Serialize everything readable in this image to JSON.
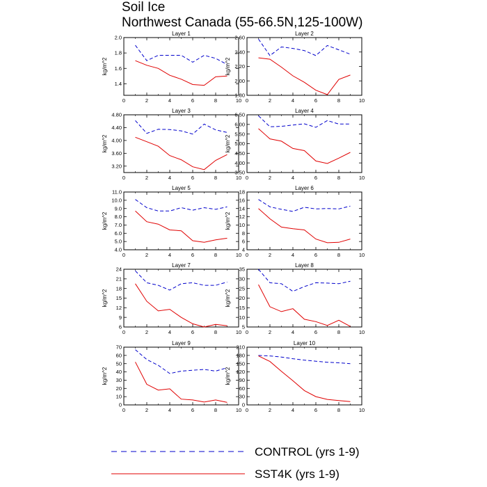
{
  "title": {
    "line1": "Soil Ice",
    "line2": "Northwest Canada (55-66.5N,125-100W)"
  },
  "legend": [
    {
      "label": "CONTROL (yrs 1-9)",
      "color": "#0000cc",
      "dash": "dashed"
    },
    {
      "label": "SST4K (yrs 1-9)",
      "color": "#e00000",
      "dash": "solid"
    }
  ],
  "chart_data": [
    {
      "type": "line",
      "title": "Layer 1",
      "ylabel": "kg/m^2",
      "xlim": [
        0,
        10
      ],
      "ylim": [
        1.25,
        2.0
      ],
      "yticks": [
        1.4,
        1.6,
        1.8,
        2.0
      ],
      "ytick_labels": [
        "1.4",
        "1.6",
        "1.8",
        "2.0"
      ],
      "x": [
        1,
        2,
        3,
        4,
        5,
        6,
        7,
        8,
        9
      ],
      "series": [
        {
          "name": "CONTROL (yrs 1-9)",
          "values": [
            1.9,
            1.7,
            1.77,
            1.77,
            1.77,
            1.68,
            1.77,
            1.73,
            1.65
          ]
        },
        {
          "name": "SST4K (yrs 1-9)",
          "values": [
            1.7,
            1.64,
            1.6,
            1.51,
            1.46,
            1.39,
            1.38,
            1.49,
            1.5
          ]
        }
      ]
    },
    {
      "type": "line",
      "title": "Layer 2",
      "ylabel": "kg/m^2",
      "xlim": [
        0,
        10
      ],
      "ylim": [
        1.8,
        2.6
      ],
      "yticks": [
        1.8,
        2.0,
        2.2,
        2.4,
        2.6
      ],
      "ytick_labels": [
        "1.80",
        "2.00",
        "2.20",
        "2.40",
        "2.60"
      ],
      "x": [
        1,
        2,
        3,
        4,
        5,
        6,
        7,
        8,
        9
      ],
      "series": [
        {
          "name": "CONTROL (yrs 1-9)",
          "values": [
            2.58,
            2.35,
            2.47,
            2.45,
            2.42,
            2.35,
            2.49,
            2.43,
            2.37
          ]
        },
        {
          "name": "SST4K (yrs 1-9)",
          "values": [
            2.32,
            2.3,
            2.19,
            2.07,
            1.98,
            1.87,
            1.81,
            2.02,
            2.08
          ]
        }
      ]
    },
    {
      "type": "line",
      "title": "Layer 3",
      "ylabel": "kg/m^2",
      "xlim": [
        0,
        10
      ],
      "ylim": [
        3.0,
        4.8
      ],
      "yticks": [
        3.2,
        3.6,
        4.0,
        4.4,
        4.8
      ],
      "ytick_labels": [
        "3.20",
        "3.60",
        "4.00",
        "4.40",
        "4.80"
      ],
      "x": [
        1,
        2,
        3,
        4,
        5,
        6,
        7,
        8,
        9
      ],
      "series": [
        {
          "name": "CONTROL (yrs 1-9)",
          "values": [
            4.62,
            4.22,
            4.35,
            4.34,
            4.3,
            4.2,
            4.51,
            4.33,
            4.25
          ]
        },
        {
          "name": "SST4K (yrs 1-9)",
          "values": [
            4.1,
            3.96,
            3.82,
            3.53,
            3.4,
            3.18,
            3.09,
            3.38,
            3.56
          ]
        }
      ]
    },
    {
      "type": "line",
      "title": "Layer 4",
      "ylabel": "kg/m^2",
      "xlim": [
        0,
        10
      ],
      "ylim": [
        3.5,
        6.5
      ],
      "yticks": [
        3.5,
        4.0,
        4.5,
        5.0,
        5.5,
        6.0,
        6.5
      ],
      "ytick_labels": [
        "3.50",
        "4.00",
        "4.50",
        "5.00",
        "5.50",
        "6.00",
        "6.50"
      ],
      "x": [
        1,
        2,
        3,
        4,
        5,
        6,
        7,
        8,
        9
      ],
      "series": [
        {
          "name": "CONTROL (yrs 1-9)",
          "values": [
            6.45,
            5.88,
            5.9,
            5.97,
            6.03,
            5.85,
            6.2,
            6.02,
            6.02
          ]
        },
        {
          "name": "SST4K (yrs 1-9)",
          "values": [
            5.78,
            5.25,
            5.13,
            4.75,
            4.64,
            4.1,
            3.97,
            4.25,
            4.55
          ]
        }
      ]
    },
    {
      "type": "line",
      "title": "Layer 5",
      "ylabel": "kg/m^2",
      "xlim": [
        0,
        10
      ],
      "ylim": [
        4.0,
        11.0
      ],
      "yticks": [
        4,
        5,
        6,
        7,
        8,
        9,
        10,
        11
      ],
      "ytick_labels": [
        "4.0",
        "5.0",
        "6.0",
        "7.0",
        "8.0",
        "9.0",
        "10.0",
        "11.0"
      ],
      "x": [
        1,
        2,
        3,
        4,
        5,
        6,
        7,
        8,
        9
      ],
      "series": [
        {
          "name": "CONTROL (yrs 1-9)",
          "values": [
            10.1,
            9.1,
            8.7,
            8.7,
            9.1,
            8.8,
            9.1,
            8.9,
            9.2
          ]
        },
        {
          "name": "SST4K (yrs 1-9)",
          "values": [
            8.7,
            7.4,
            7.1,
            6.4,
            6.3,
            5.1,
            4.9,
            5.2,
            5.4
          ]
        }
      ]
    },
    {
      "type": "line",
      "title": "Layer 6",
      "ylabel": "kg/m^2",
      "xlim": [
        0,
        10
      ],
      "ylim": [
        4,
        18
      ],
      "yticks": [
        4,
        6,
        8,
        10,
        12,
        14,
        16,
        18
      ],
      "ytick_labels": [
        "4",
        "6",
        "8",
        "10",
        "12",
        "14",
        "16",
        "18"
      ],
      "x": [
        1,
        2,
        3,
        4,
        5,
        6,
        7,
        8,
        9
      ],
      "series": [
        {
          "name": "CONTROL (yrs 1-9)",
          "values": [
            16.2,
            14.4,
            13.8,
            13.3,
            14.3,
            13.9,
            14.0,
            13.9,
            14.6
          ]
        },
        {
          "name": "SST4K (yrs 1-9)",
          "values": [
            14.0,
            11.5,
            9.5,
            9.1,
            8.8,
            6.6,
            5.7,
            5.8,
            6.6
          ]
        }
      ]
    },
    {
      "type": "line",
      "title": "Layer 7",
      "ylabel": "kg/m^2",
      "xlim": [
        0,
        10
      ],
      "ylim": [
        6,
        24
      ],
      "yticks": [
        6,
        9,
        12,
        15,
        18,
        21,
        24
      ],
      "ytick_labels": [
        "6",
        "9",
        "12",
        "15",
        "18",
        "21",
        "24"
      ],
      "x": [
        1,
        2,
        3,
        4,
        5,
        6,
        7,
        8,
        9
      ],
      "series": [
        {
          "name": "CONTROL (yrs 1-9)",
          "values": [
            23.5,
            19.8,
            19.0,
            17.5,
            19.5,
            19.8,
            19.0,
            19.0,
            20.0
          ]
        },
        {
          "name": "SST4K (yrs 1-9)",
          "values": [
            19.5,
            14.0,
            11.0,
            11.5,
            9.0,
            7.0,
            6.0,
            6.8,
            6.4
          ]
        }
      ]
    },
    {
      "type": "line",
      "title": "Layer 8",
      "ylabel": "kg/m^2",
      "xlim": [
        0,
        10
      ],
      "ylim": [
        5,
        35
      ],
      "yticks": [
        5,
        10,
        15,
        20,
        25,
        30,
        35
      ],
      "ytick_labels": [
        "5",
        "10",
        "15",
        "20",
        "25",
        "30",
        "35"
      ],
      "x": [
        1,
        2,
        3,
        4,
        5,
        6,
        7,
        8,
        9
      ],
      "series": [
        {
          "name": "CONTROL (yrs 1-9)",
          "values": [
            35.0,
            28.0,
            27.5,
            23.5,
            26.0,
            28.0,
            27.8,
            27.5,
            28.8
          ]
        },
        {
          "name": "SST4K (yrs 1-9)",
          "values": [
            27.0,
            15.5,
            13.0,
            14.5,
            9.0,
            7.8,
            5.8,
            8.5,
            5.3
          ]
        }
      ]
    },
    {
      "type": "line",
      "title": "Layer 9",
      "ylabel": "kg/m^2",
      "xlim": [
        0,
        10
      ],
      "ylim": [
        0,
        70
      ],
      "yticks": [
        0,
        10,
        20,
        30,
        40,
        50,
        60,
        70
      ],
      "ytick_labels": [
        "0",
        "10",
        "20",
        "30",
        "40",
        "50",
        "60",
        "70"
      ],
      "x": [
        1,
        2,
        3,
        4,
        5,
        6,
        7,
        8,
        9
      ],
      "series": [
        {
          "name": "CONTROL (yrs 1-9)",
          "values": [
            67,
            55,
            48,
            38,
            41,
            42,
            43,
            41,
            45
          ]
        },
        {
          "name": "SST4K (yrs 1-9)",
          "values": [
            52,
            25,
            18,
            19.5,
            7,
            6,
            3.5,
            6,
            3
          ]
        }
      ]
    },
    {
      "type": "line",
      "title": "Layer 10",
      "ylabel": "kg/m^2",
      "xlim": [
        0,
        10
      ],
      "ylim": [
        0,
        210
      ],
      "yticks": [
        0,
        30,
        60,
        90,
        120,
        150,
        180,
        210
      ],
      "ytick_labels": [
        "0",
        "30",
        "60",
        "90",
        "120",
        "150",
        "180",
        "210"
      ],
      "x": [
        1,
        2,
        3,
        4,
        5,
        6,
        7,
        8,
        9
      ],
      "series": [
        {
          "name": "CONTROL (yrs 1-9)",
          "values": [
            180,
            178,
            174,
            168,
            163,
            159,
            155,
            153,
            150
          ]
        },
        {
          "name": "SST4K (yrs 1-9)",
          "values": [
            178,
            158,
            122,
            88,
            52,
            30,
            20,
            16,
            12
          ]
        }
      ]
    }
  ]
}
